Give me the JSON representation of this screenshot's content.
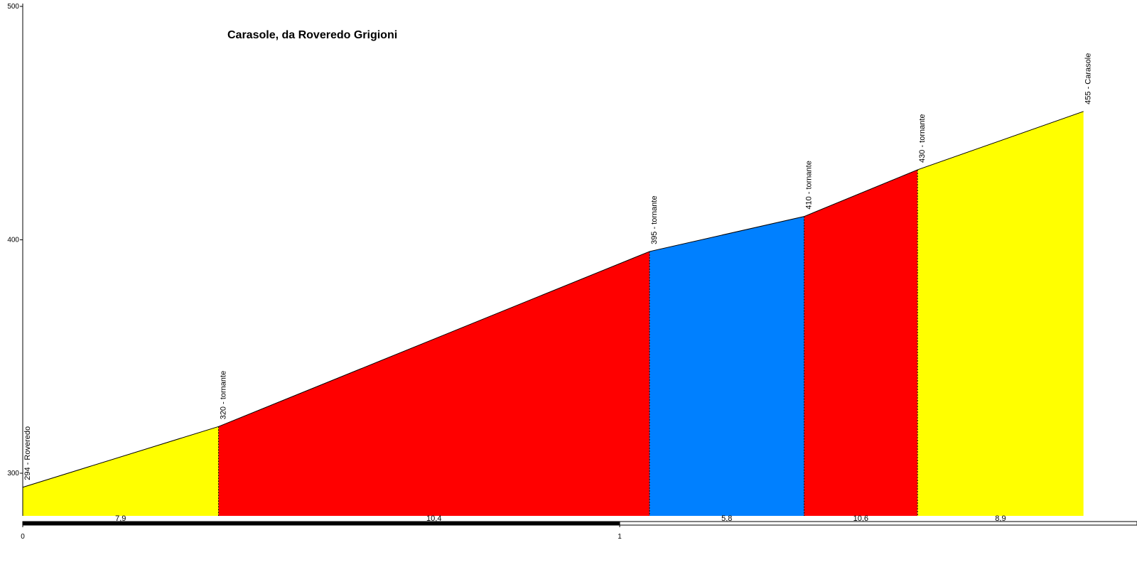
{
  "chart_data": {
    "type": "area",
    "title": "Carasole, da Roveredo Grigioni",
    "xlabel": "",
    "ylabel": "",
    "xlim": [
      0,
      1.8
    ],
    "ylim": [
      270,
      500
    ],
    "y_ticks": [
      {
        "value": 300,
        "label": "300"
      },
      {
        "value": 400,
        "label": "400"
      },
      {
        "value": 500,
        "label": "500"
      }
    ],
    "x_ticks": [
      {
        "value": 0,
        "label": "0"
      },
      {
        "value": 1,
        "label": "1"
      }
    ],
    "points": [
      {
        "x": 0.0,
        "y": 294,
        "label": "294 - Roveredo"
      },
      {
        "x": 0.328,
        "y": 320,
        "label": "320 - tornante"
      },
      {
        "x": 1.05,
        "y": 395,
        "label": "395 - tornante"
      },
      {
        "x": 1.309,
        "y": 410,
        "label": "410 - tornante"
      },
      {
        "x": 1.499,
        "y": 430,
        "label": "430 - tornante"
      },
      {
        "x": 1.777,
        "y": 455,
        "label": "455 - Carasole"
      }
    ],
    "segments": [
      {
        "from": 0.0,
        "to": 0.328,
        "gradient": "7,9",
        "color": "#ffff00"
      },
      {
        "from": 0.328,
        "to": 1.05,
        "gradient": "10,4",
        "color": "#ff0000"
      },
      {
        "from": 1.05,
        "to": 1.309,
        "gradient": "5,8",
        "color": "#0080ff"
      },
      {
        "from": 1.309,
        "to": 1.499,
        "gradient": "10,6",
        "color": "#ff0000"
      },
      {
        "from": 1.499,
        "to": 1.777,
        "gradient": "8,9",
        "color": "#ffff00"
      }
    ],
    "grid": false,
    "legend": "none"
  }
}
